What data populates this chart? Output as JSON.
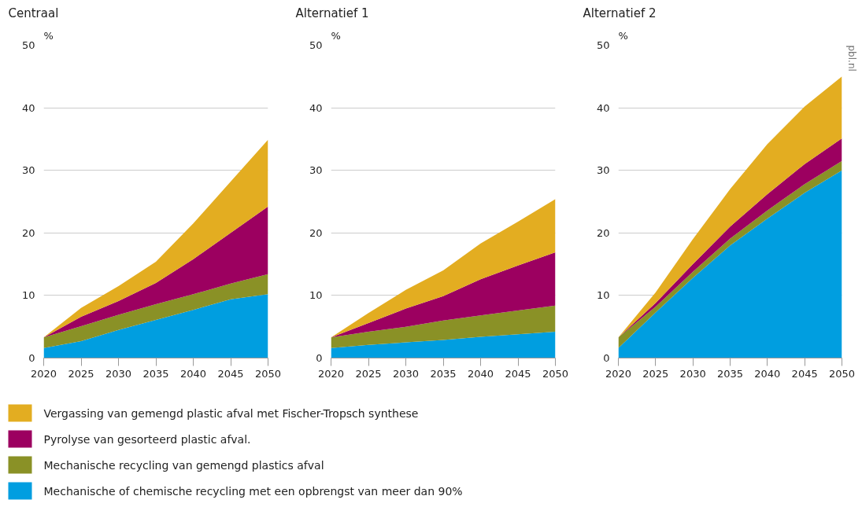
{
  "chart_data": [
    {
      "type": "area",
      "title": "Centraal",
      "ylabel": "%",
      "stacked": true,
      "x": [
        2020,
        2025,
        2030,
        2035,
        2040,
        2045,
        2050
      ],
      "xlim": [
        2020,
        2050
      ],
      "xticks": [
        2020,
        2025,
        2030,
        2035,
        2040,
        2045,
        2050
      ],
      "ylim": [
        0,
        50
      ],
      "yticks": [
        0,
        10,
        20,
        30,
        40,
        50
      ],
      "grid": "y",
      "legend": "bottom",
      "series": [
        {
          "name": "Mechanische of chemische recycling met een opbrengst van meer dan 90%",
          "color": "#009ee0",
          "values": [
            1.6,
            2.7,
            4.5,
            6.1,
            7.7,
            9.4,
            10.2
          ]
        },
        {
          "name": "Mechanische recycling van gemengd plastics afval",
          "color": "#8a9126",
          "values": [
            1.7,
            2.4,
            2.4,
            2.5,
            2.5,
            2.5,
            3.2
          ]
        },
        {
          "name": "Pyrolyse van gesorteerd plastic afval.",
          "color": "#9c0060",
          "values": [
            0,
            1.5,
            2.2,
            3.4,
            5.6,
            8.1,
            10.8
          ]
        },
        {
          "name": "Vergassing van gemengd plastic afval met Fischer-Tropsch synthese",
          "color": "#e3ad21",
          "values": [
            0,
            1.4,
            2.4,
            3.4,
            5.7,
            8.2,
            10.7
          ]
        }
      ]
    },
    {
      "type": "area",
      "title": "Alternatief 1",
      "ylabel": "%",
      "stacked": true,
      "x": [
        2020,
        2025,
        2030,
        2035,
        2040,
        2045,
        2050
      ],
      "xlim": [
        2020,
        2050
      ],
      "xticks": [
        2020,
        2025,
        2030,
        2035,
        2040,
        2045,
        2050
      ],
      "ylim": [
        0,
        50
      ],
      "yticks": [
        0,
        10,
        20,
        30,
        40,
        50
      ],
      "grid": "y",
      "series": [
        {
          "color": "#009ee0",
          "values": [
            1.6,
            2.1,
            2.5,
            2.9,
            3.4,
            3.8,
            4.2
          ]
        },
        {
          "color": "#8a9126",
          "values": [
            1.7,
            2.1,
            2.5,
            3.1,
            3.4,
            3.8,
            4.2
          ]
        },
        {
          "color": "#9c0060",
          "values": [
            0,
            1.4,
            2.9,
            3.9,
            5.8,
            7.2,
            8.5
          ]
        },
        {
          "color": "#e3ad21",
          "values": [
            0,
            1.6,
            3.0,
            4.1,
            5.7,
            7.0,
            8.5
          ]
        }
      ]
    },
    {
      "type": "area",
      "title": "Alternatief 2",
      "ylabel": "%",
      "stacked": true,
      "x": [
        2020,
        2025,
        2030,
        2035,
        2040,
        2045,
        2050
      ],
      "xlim": [
        2020,
        2050
      ],
      "xticks": [
        2020,
        2025,
        2030,
        2035,
        2040,
        2045,
        2050
      ],
      "ylim": [
        0,
        50
      ],
      "yticks": [
        0,
        10,
        20,
        30,
        40,
        50
      ],
      "grid": "y",
      "annotations": [
        "pbl.nl"
      ],
      "series": [
        {
          "color": "#009ee0",
          "values": [
            1.6,
            7.3,
            12.8,
            18.0,
            22.3,
            26.4,
            30.0
          ]
        },
        {
          "color": "#8a9126",
          "values": [
            1.7,
            0.9,
            1.0,
            1.1,
            1.3,
            1.4,
            1.5
          ]
        },
        {
          "color": "#9c0060",
          "values": [
            0,
            0.6,
            1.2,
            1.9,
            2.6,
            3.2,
            3.6
          ]
        },
        {
          "color": "#e3ad21",
          "values": [
            0,
            1.7,
            4.0,
            6.0,
            8.0,
            9.2,
            9.9
          ]
        }
      ]
    }
  ]
}
